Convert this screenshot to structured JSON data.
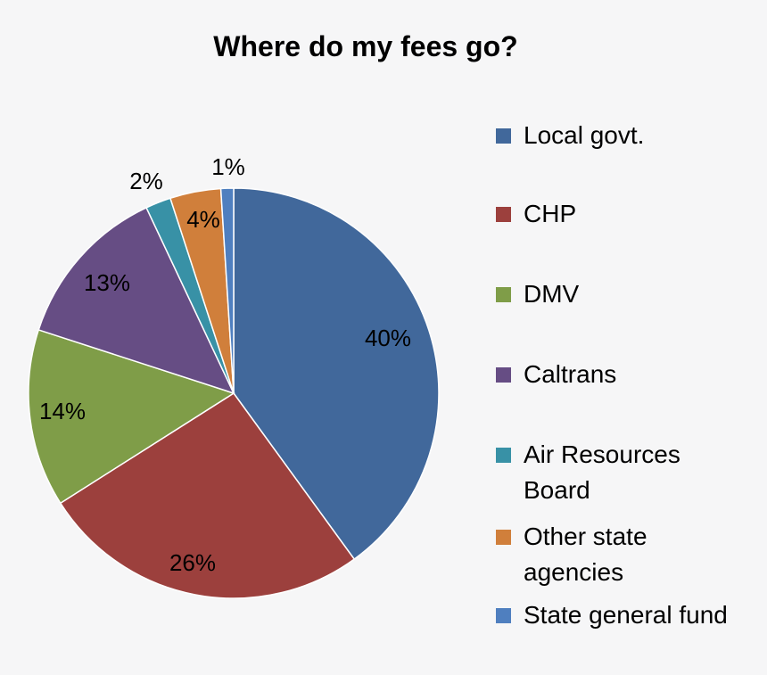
{
  "chart_data": {
    "type": "pie",
    "title": "Where do my fees go?",
    "slices": [
      {
        "name": "Local govt.",
        "value": 40,
        "label": "40%",
        "color": "#41689b"
      },
      {
        "name": "CHP",
        "value": 26,
        "label": "26%",
        "color": "#9c403d"
      },
      {
        "name": "DMV",
        "value": 14,
        "label": "14%",
        "color": "#7f9d48"
      },
      {
        "name": "Caltrans",
        "value": 13,
        "label": "13%",
        "color": "#664d84"
      },
      {
        "name": "Air Resources Board",
        "value": 2,
        "label": "2%",
        "color": "#3891a6"
      },
      {
        "name": "Other state agencies",
        "value": 4,
        "label": "4%",
        "color": "#d07f3b"
      },
      {
        "name": "State general fund",
        "value": 1,
        "label": "1%",
        "color": "#4f7fbf"
      }
    ],
    "legend_position": "right"
  }
}
